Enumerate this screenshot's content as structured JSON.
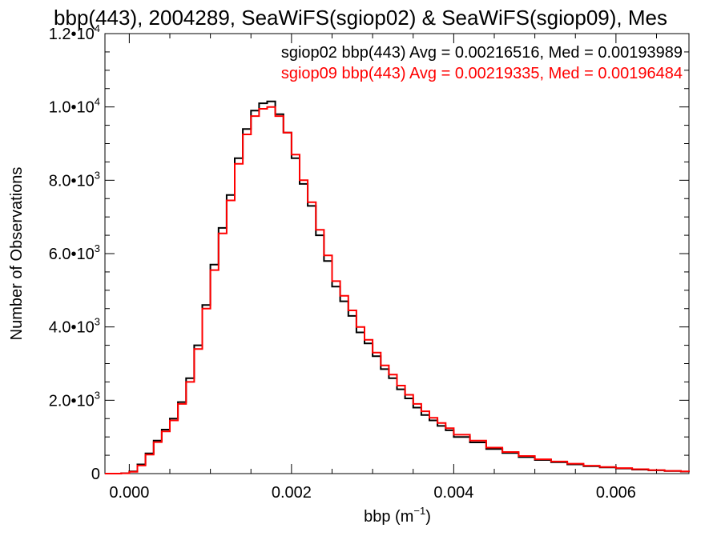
{
  "chart_data": {
    "type": "line",
    "title": "bbp(443), 2004289, SeaWiFS(sgiop02) & SeaWiFS(sgiop09), Mes",
    "xlabel": "bbp (m",
    "xlabel_sup": "−1",
    "xlabel_tail": ")",
    "ylabel": "Number of Observations",
    "xlim": [
      -0.0003,
      0.0069
    ],
    "ylim": [
      0,
      12000
    ],
    "x_ticks": [
      {
        "value": 0.0,
        "label": "0.000"
      },
      {
        "value": 0.002,
        "label": "0.002"
      },
      {
        "value": 0.004,
        "label": "0.004"
      },
      {
        "value": 0.006,
        "label": "0.006"
      }
    ],
    "y_ticks": [
      {
        "value": 0,
        "mant": "0",
        "exp": ""
      },
      {
        "value": 2000,
        "mant": "2.0•10",
        "exp": "3"
      },
      {
        "value": 4000,
        "mant": "4.0•10",
        "exp": "3"
      },
      {
        "value": 6000,
        "mant": "6.0•10",
        "exp": "3"
      },
      {
        "value": 8000,
        "mant": "8.0•10",
        "exp": "3"
      },
      {
        "value": 10000,
        "mant": "1.0•10",
        "exp": "4"
      },
      {
        "value": 12000,
        "mant": "1.2•10",
        "exp": "4"
      }
    ],
    "legend_position": "top-right",
    "series": [
      {
        "name": "sgiop02 bbp(443) Avg = 0.00216516, Med = 0.00193989",
        "color": "#000000",
        "x": [
          -0.0003,
          -0.0002,
          -0.0001,
          0.0,
          0.0001,
          0.0002,
          0.0003,
          0.0004,
          0.0005,
          0.0006,
          0.0007,
          0.0008,
          0.0009,
          0.001,
          0.0011,
          0.0012,
          0.0013,
          0.0014,
          0.0015,
          0.0016,
          0.0017,
          0.0018,
          0.0019,
          0.002,
          0.0021,
          0.0022,
          0.0023,
          0.0024,
          0.0025,
          0.0026,
          0.0027,
          0.0028,
          0.0029,
          0.003,
          0.0031,
          0.0032,
          0.0033,
          0.0034,
          0.0035,
          0.0036,
          0.0037,
          0.0038,
          0.0039,
          0.004,
          0.0042,
          0.0044,
          0.0046,
          0.0048,
          0.005,
          0.0052,
          0.0054,
          0.0056,
          0.0058,
          0.006,
          0.0062,
          0.0064,
          0.0066,
          0.0068,
          0.0069
        ],
        "values": [
          0,
          0,
          10,
          60,
          250,
          550,
          900,
          1200,
          1500,
          1950,
          2600,
          3500,
          4600,
          5700,
          6700,
          7600,
          8600,
          9400,
          9900,
          10100,
          10150,
          9800,
          9300,
          8600,
          7900,
          7300,
          6500,
          5800,
          5100,
          4700,
          4300,
          3850,
          3550,
          3200,
          2850,
          2600,
          2300,
          2050,
          1800,
          1600,
          1450,
          1300,
          1180,
          1000,
          850,
          670,
          560,
          450,
          370,
          310,
          250,
          200,
          170,
          140,
          110,
          90,
          70,
          55,
          45
        ]
      },
      {
        "name": "sgiop09 bbp(443) Avg = 0.00219335, Med = 0.00196484",
        "color": "#ff0000",
        "x": [
          -0.0003,
          -0.0002,
          -0.0001,
          0.0,
          0.0001,
          0.0002,
          0.0003,
          0.0004,
          0.0005,
          0.0006,
          0.0007,
          0.0008,
          0.0009,
          0.001,
          0.0011,
          0.0012,
          0.0013,
          0.0014,
          0.0015,
          0.0016,
          0.0017,
          0.0018,
          0.0019,
          0.002,
          0.0021,
          0.0022,
          0.0023,
          0.0024,
          0.0025,
          0.0026,
          0.0027,
          0.0028,
          0.0029,
          0.003,
          0.0031,
          0.0032,
          0.0033,
          0.0034,
          0.0035,
          0.0036,
          0.0037,
          0.0038,
          0.0039,
          0.004,
          0.0042,
          0.0044,
          0.0046,
          0.0048,
          0.005,
          0.0052,
          0.0054,
          0.0056,
          0.0058,
          0.006,
          0.0062,
          0.0064,
          0.0066,
          0.0068,
          0.0069
        ],
        "values": [
          0,
          0,
          8,
          50,
          220,
          520,
          860,
          1150,
          1450,
          1900,
          2500,
          3400,
          4500,
          5550,
          6550,
          7450,
          8450,
          9250,
          9750,
          9950,
          10000,
          9750,
          9300,
          8700,
          8000,
          7400,
          6650,
          5950,
          5250,
          4850,
          4450,
          4000,
          3650,
          3300,
          2950,
          2700,
          2400,
          2150,
          1900,
          1700,
          1520,
          1380,
          1240,
          1060,
          900,
          710,
          590,
          480,
          390,
          330,
          270,
          215,
          180,
          150,
          120,
          95,
          75,
          60,
          48
        ]
      }
    ]
  }
}
